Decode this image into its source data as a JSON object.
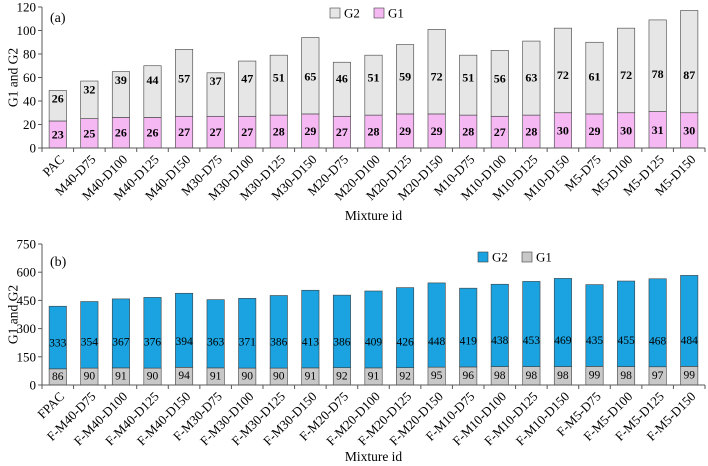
{
  "chart_data": [
    {
      "type": "bar",
      "stacked": true,
      "panel_label": "(a)",
      "categories": [
        "PAC",
        "M40-D75",
        "M40-D100",
        "M40-D125",
        "M40-D150",
        "M30-D75",
        "M30-D100",
        "M30-D125",
        "M30-D150",
        "M20-D75",
        "M20-D100",
        "M20-D125",
        "M20-D150",
        "M10-D75",
        "M10-D100",
        "M10-D125",
        "M10-D150",
        "M5-D75",
        "M5-D100",
        "M5-D125",
        "M5-D150"
      ],
      "series": [
        {
          "name": "G1",
          "color": "#f5b8f3",
          "values": [
            23,
            25,
            26,
            26,
            27,
            27,
            27,
            28,
            29,
            27,
            28,
            29,
            29,
            28,
            27,
            28,
            30,
            29,
            30,
            31,
            30
          ]
        },
        {
          "name": "G2",
          "color": "#e6e6e6",
          "values": [
            26,
            32,
            39,
            44,
            57,
            37,
            47,
            51,
            65,
            46,
            51,
            59,
            72,
            51,
            56,
            63,
            72,
            61,
            72,
            78,
            87
          ]
        }
      ],
      "xlabel": "Mixture id",
      "ylabel": "G1 and G2",
      "ylim": [
        0,
        120
      ],
      "yticks": [
        0,
        20,
        40,
        60,
        80,
        100,
        120
      ],
      "grid": false,
      "legend_position": "top-center"
    },
    {
      "type": "bar",
      "stacked": true,
      "panel_label": "(b)",
      "categories": [
        "FPAC",
        "F-M40-D75",
        "F-M40-D100",
        "F-M40-D125",
        "F-M40-D150",
        "F-M30-D75",
        "F-M30-D100",
        "F-M30-D125",
        "F-M30-D150",
        "F-M20-D75",
        "F-M20-D100",
        "F-M20-D125",
        "F-M20-D150",
        "F-M10-D75",
        "F-M10-D100",
        "F-M10-D125",
        "F-M10-D150",
        "F-M5-D75",
        "F-M5-D100",
        "F-M5-D125",
        "F-M5-D150"
      ],
      "series": [
        {
          "name": "G1",
          "color": "#c8c8c8",
          "values": [
            86,
            90,
            91,
            90,
            94,
            91,
            90,
            90,
            91,
            92,
            91,
            92,
            95,
            96,
            98,
            98,
            98,
            99,
            98,
            97,
            99
          ]
        },
        {
          "name": "G2",
          "color": "#1aa3e0",
          "values": [
            333,
            354,
            367,
            376,
            394,
            363,
            371,
            386,
            413,
            386,
            409,
            426,
            448,
            419,
            438,
            453,
            469,
            435,
            455,
            468,
            484
          ]
        }
      ],
      "xlabel": "Mixture id",
      "ylabel": "G1 and G2",
      "ylim": [
        0,
        750
      ],
      "yticks": [
        0,
        150,
        300,
        450,
        600,
        750
      ],
      "grid": false,
      "legend_position": "top-right"
    }
  ]
}
